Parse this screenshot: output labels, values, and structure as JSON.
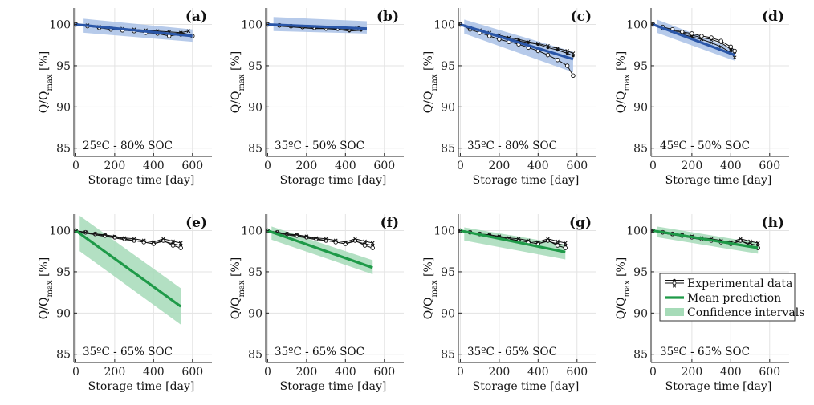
{
  "colors": {
    "blue_band": "#a9c1e6",
    "blue_line": "#2a56a8",
    "green_band": "#a6dbb8",
    "green_line": "#1e9a48",
    "data": "#111111"
  },
  "chart_data": [
    {
      "type": "line",
      "panel": "(a)",
      "condition": "25ºC - 80% SOC",
      "xlabel": "Storage time [day]",
      "ylabel": "Q/Q",
      "ylabel_sub": "max",
      "ylabel_unit": " [%]",
      "xlim": [
        -10,
        700
      ],
      "ylim": [
        84,
        102
      ],
      "xticks": [
        0,
        200,
        400,
        600
      ],
      "yticks": [
        85,
        90,
        95,
        100
      ],
      "grid": true,
      "theme": "blue",
      "series": [
        {
          "marker": "filled",
          "x": [
            0,
            60,
            120,
            180,
            240,
            300,
            360,
            420,
            480,
            540,
            600
          ],
          "y": [
            100,
            99.8,
            99.7,
            99.5,
            99.4,
            99.3,
            99.2,
            99.1,
            98.8,
            99.0,
            98.7
          ]
        },
        {
          "marker": "open",
          "x": [
            0,
            60,
            120,
            180,
            240,
            300,
            360,
            420,
            480,
            540,
            600
          ],
          "y": [
            100,
            99.8,
            99.6,
            99.4,
            99.3,
            99.2,
            99.0,
            98.9,
            98.6,
            98.8,
            98.6
          ]
        },
        {
          "marker": "cross",
          "x": [
            0,
            60,
            120,
            180,
            240,
            300,
            360,
            420,
            480,
            540,
            580
          ],
          "y": [
            100,
            99.9,
            99.7,
            99.6,
            99.5,
            99.4,
            99.3,
            99.2,
            99.1,
            99.0,
            99.2
          ]
        }
      ],
      "prediction": {
        "x": [
          0,
          600
        ],
        "y": [
          100,
          98.6
        ]
      },
      "interval": {
        "x": [
          40,
          600
        ],
        "lower": [
          99.0,
          97.9
        ],
        "upper": [
          100.7,
          99.4
        ]
      }
    },
    {
      "type": "line",
      "panel": "(b)",
      "condition": "35ºC - 50% SOC",
      "xlabel": "Storage time [day]",
      "ylabel": "Q/Q",
      "ylabel_sub": "max",
      "ylabel_unit": " [%]",
      "xlim": [
        -10,
        700
      ],
      "ylim": [
        84,
        102
      ],
      "xticks": [
        0,
        200,
        400,
        600
      ],
      "yticks": [
        85,
        90,
        95,
        100
      ],
      "grid": true,
      "theme": "blue",
      "series": [
        {
          "marker": "filled",
          "x": [
            0,
            60,
            120,
            180,
            240,
            300,
            360,
            420,
            480
          ],
          "y": [
            100,
            99.8,
            99.7,
            99.6,
            99.5,
            99.5,
            99.4,
            99.2,
            99.3
          ]
        },
        {
          "marker": "open",
          "x": [
            0,
            60,
            120,
            180,
            240,
            300,
            360,
            420,
            470
          ],
          "y": [
            100,
            99.9,
            99.8,
            99.7,
            99.6,
            99.5,
            99.5,
            99.4,
            99.5
          ]
        },
        {
          "marker": "cross",
          "x": [
            0,
            60,
            120,
            180,
            240,
            300,
            360,
            420,
            460
          ],
          "y": [
            100,
            99.9,
            99.8,
            99.7,
            99.7,
            99.6,
            99.6,
            99.5,
            99.6
          ]
        }
      ],
      "prediction": {
        "x": [
          0,
          510
        ],
        "y": [
          100,
          99.5
        ]
      },
      "interval": {
        "x": [
          30,
          510
        ],
        "lower": [
          99.2,
          98.9
        ],
        "upper": [
          100.9,
          100.4
        ]
      }
    },
    {
      "type": "line",
      "panel": "(c)",
      "condition": "35ºC - 80% SOC",
      "xlabel": "Storage time [day]",
      "ylabel": "Q/Q",
      "ylabel_sub": "max",
      "ylabel_unit": " [%]",
      "xlim": [
        -10,
        700
      ],
      "ylim": [
        84,
        102
      ],
      "xticks": [
        0,
        200,
        400,
        600
      ],
      "yticks": [
        85,
        90,
        95,
        100
      ],
      "grid": true,
      "theme": "blue",
      "series": [
        {
          "marker": "filled",
          "x": [
            0,
            50,
            100,
            150,
            200,
            250,
            300,
            350,
            400,
            450,
            500,
            550,
            580
          ],
          "y": [
            100,
            99.5,
            99.2,
            98.8,
            98.5,
            98.3,
            98.0,
            97.8,
            97.6,
            97.2,
            96.9,
            96.5,
            96.2
          ]
        },
        {
          "marker": "open",
          "x": [
            0,
            50,
            100,
            150,
            200,
            250,
            300,
            350,
            400,
            450,
            500,
            550,
            580
          ],
          "y": [
            100,
            99.4,
            99.0,
            98.6,
            98.2,
            97.9,
            97.6,
            97.2,
            96.8,
            96.3,
            95.7,
            95.0,
            93.8
          ]
        },
        {
          "marker": "cross",
          "x": [
            0,
            50,
            100,
            150,
            200,
            250,
            300,
            350,
            400,
            450,
            500,
            550,
            580
          ],
          "y": [
            100,
            99.6,
            99.3,
            99.0,
            98.7,
            98.4,
            98.2,
            97.9,
            97.7,
            97.4,
            97.1,
            96.8,
            96.5
          ]
        }
      ],
      "prediction": {
        "x": [
          0,
          580
        ],
        "y": [
          100,
          95.8
        ]
      },
      "interval": {
        "x": [
          20,
          580
        ],
        "lower": [
          98.9,
          94.2
        ],
        "upper": [
          100.6,
          96.7
        ]
      }
    },
    {
      "type": "line",
      "panel": "(d)",
      "condition": "45ºC - 50% SOC",
      "xlabel": "Storage time [day]",
      "ylabel": "Q/Q",
      "ylabel_sub": "max",
      "ylabel_unit": " [%]",
      "xlim": [
        -10,
        700
      ],
      "ylim": [
        84,
        102
      ],
      "xticks": [
        0,
        200,
        400,
        600
      ],
      "yticks": [
        85,
        90,
        95,
        100
      ],
      "grid": true,
      "theme": "blue",
      "series": [
        {
          "marker": "filled",
          "x": [
            0,
            50,
            100,
            150,
            200,
            250,
            300,
            350,
            400,
            420
          ],
          "y": [
            100,
            99.6,
            99.3,
            99.0,
            98.7,
            98.4,
            98.2,
            97.8,
            97.0,
            96.6
          ]
        },
        {
          "marker": "open",
          "x": [
            0,
            50,
            100,
            150,
            200,
            250,
            300,
            350,
            400,
            420
          ],
          "y": [
            100,
            99.7,
            99.4,
            99.1,
            98.9,
            98.6,
            98.4,
            98.0,
            97.3,
            96.8
          ]
        },
        {
          "marker": "cross",
          "x": [
            0,
            50,
            100,
            150,
            200,
            250,
            300,
            350,
            400,
            420
          ],
          "y": [
            100,
            99.5,
            99.2,
            98.8,
            98.5,
            98.2,
            97.8,
            97.3,
            96.6,
            96.0
          ]
        }
      ],
      "prediction": {
        "x": [
          0,
          420
        ],
        "y": [
          100,
          96.3
        ]
      },
      "interval": {
        "x": [
          20,
          420
        ],
        "lower": [
          99.0,
          95.6
        ],
        "upper": [
          100.6,
          97.0
        ]
      }
    },
    {
      "type": "line",
      "panel": "(e)",
      "condition": "35ºC - 65% SOC",
      "xlabel": "Storage time [day]",
      "ylabel": "Q/Q",
      "ylabel_sub": "max",
      "ylabel_unit": " [%]",
      "xlim": [
        -10,
        700
      ],
      "ylim": [
        84,
        102
      ],
      "xticks": [
        0,
        200,
        400,
        600
      ],
      "yticks": [
        85,
        90,
        95,
        100
      ],
      "grid": true,
      "theme": "green",
      "series": [
        {
          "marker": "filled",
          "x": [
            0,
            50,
            100,
            150,
            200,
            250,
            300,
            350,
            400,
            450,
            500,
            540
          ],
          "y": [
            100,
            99.7,
            99.5,
            99.3,
            99.1,
            98.9,
            98.8,
            98.6,
            98.4,
            98.7,
            98.4,
            98.2
          ]
        },
        {
          "marker": "open",
          "x": [
            0,
            50,
            100,
            150,
            200,
            250,
            300,
            350,
            400,
            450,
            500,
            540
          ],
          "y": [
            100,
            99.8,
            99.6,
            99.4,
            99.2,
            99.0,
            98.8,
            98.6,
            98.4,
            98.8,
            98.2,
            97.9
          ]
        },
        {
          "marker": "cross",
          "x": [
            0,
            50,
            100,
            150,
            200,
            250,
            300,
            350,
            400,
            450,
            500,
            540
          ],
          "y": [
            100,
            99.8,
            99.6,
            99.5,
            99.3,
            99.1,
            99.0,
            98.8,
            98.6,
            99.0,
            98.7,
            98.5
          ]
        }
      ],
      "prediction": {
        "x": [
          0,
          540
        ],
        "y": [
          100,
          90.8
        ]
      },
      "interval": {
        "x": [
          20,
          540
        ],
        "lower": [
          97.5,
          88.6
        ],
        "upper": [
          101.8,
          93.0
        ]
      }
    },
    {
      "type": "line",
      "panel": "(f)",
      "condition": "35ºC - 65% SOC",
      "xlabel": "Storage time [day]",
      "ylabel": "Q/Q",
      "ylabel_sub": "max",
      "ylabel_unit": " [%]",
      "xlim": [
        -10,
        700
      ],
      "ylim": [
        84,
        102
      ],
      "xticks": [
        0,
        200,
        400,
        600
      ],
      "yticks": [
        85,
        90,
        95,
        100
      ],
      "grid": true,
      "theme": "green",
      "series": [
        {
          "marker": "filled",
          "x": [
            0,
            50,
            100,
            150,
            200,
            250,
            300,
            350,
            400,
            450,
            500,
            540
          ],
          "y": [
            100,
            99.7,
            99.5,
            99.3,
            99.1,
            98.9,
            98.8,
            98.6,
            98.4,
            98.7,
            98.4,
            98.2
          ]
        },
        {
          "marker": "open",
          "x": [
            0,
            50,
            100,
            150,
            200,
            250,
            300,
            350,
            400,
            450,
            500,
            540
          ],
          "y": [
            100,
            99.8,
            99.6,
            99.4,
            99.2,
            99.0,
            98.8,
            98.6,
            98.4,
            98.8,
            98.2,
            97.9
          ]
        },
        {
          "marker": "cross",
          "x": [
            0,
            50,
            100,
            150,
            200,
            250,
            300,
            350,
            400,
            450,
            500,
            540
          ],
          "y": [
            100,
            99.8,
            99.6,
            99.5,
            99.3,
            99.1,
            99.0,
            98.8,
            98.6,
            99.0,
            98.7,
            98.5
          ]
        }
      ],
      "prediction": {
        "x": [
          0,
          540
        ],
        "y": [
          100,
          95.5
        ]
      },
      "interval": {
        "x": [
          20,
          540
        ],
        "lower": [
          98.9,
          94.7
        ],
        "upper": [
          100.5,
          96.4
        ]
      }
    },
    {
      "type": "line",
      "panel": "(g)",
      "condition": "35ºC - 65% SOC",
      "xlabel": "Storage time [day]",
      "ylabel": "Q/Q",
      "ylabel_sub": "max",
      "ylabel_unit": " [%]",
      "xlim": [
        -10,
        700
      ],
      "ylim": [
        84,
        102
      ],
      "xticks": [
        0,
        200,
        400,
        600
      ],
      "yticks": [
        85,
        90,
        95,
        100
      ],
      "grid": true,
      "theme": "green",
      "series": [
        {
          "marker": "filled",
          "x": [
            0,
            50,
            100,
            150,
            200,
            250,
            300,
            350,
            400,
            450,
            500,
            540
          ],
          "y": [
            100,
            99.7,
            99.5,
            99.3,
            99.1,
            98.9,
            98.8,
            98.6,
            98.4,
            98.7,
            98.4,
            98.2
          ]
        },
        {
          "marker": "open",
          "x": [
            0,
            50,
            100,
            150,
            200,
            250,
            300,
            350,
            400,
            450,
            500,
            540
          ],
          "y": [
            100,
            99.8,
            99.6,
            99.4,
            99.2,
            99.0,
            98.8,
            98.6,
            98.4,
            98.8,
            98.2,
            97.9
          ]
        },
        {
          "marker": "cross",
          "x": [
            0,
            50,
            100,
            150,
            200,
            250,
            300,
            350,
            400,
            450,
            500,
            540
          ],
          "y": [
            100,
            99.8,
            99.6,
            99.5,
            99.3,
            99.1,
            99.0,
            98.8,
            98.6,
            99.0,
            98.7,
            98.5
          ]
        }
      ],
      "prediction": {
        "x": [
          0,
          540
        ],
        "y": [
          100,
          97.4
        ]
      },
      "interval": {
        "x": [
          20,
          540
        ],
        "lower": [
          98.8,
          96.5
        ],
        "upper": [
          100.4,
          98.3
        ]
      }
    },
    {
      "type": "line",
      "panel": "(h)",
      "condition": "35ºC - 65% SOC",
      "xlabel": "Storage time [day]",
      "ylabel": "Q/Q",
      "ylabel_sub": "max",
      "ylabel_unit": " [%]",
      "xlim": [
        -10,
        700
      ],
      "ylim": [
        84,
        102
      ],
      "xticks": [
        0,
        200,
        400,
        600
      ],
      "yticks": [
        85,
        90,
        95,
        100
      ],
      "grid": true,
      "theme": "green",
      "series": [
        {
          "marker": "filled",
          "x": [
            0,
            50,
            100,
            150,
            200,
            250,
            300,
            350,
            400,
            450,
            500,
            540
          ],
          "y": [
            100,
            99.7,
            99.5,
            99.3,
            99.1,
            98.9,
            98.8,
            98.6,
            98.4,
            98.7,
            98.4,
            98.2
          ]
        },
        {
          "marker": "open",
          "x": [
            0,
            50,
            100,
            150,
            200,
            250,
            300,
            350,
            400,
            450,
            500,
            540
          ],
          "y": [
            100,
            99.8,
            99.6,
            99.4,
            99.2,
            99.0,
            98.8,
            98.6,
            98.4,
            98.8,
            98.2,
            97.9
          ]
        },
        {
          "marker": "cross",
          "x": [
            0,
            50,
            100,
            150,
            200,
            250,
            300,
            350,
            400,
            450,
            500,
            540
          ],
          "y": [
            100,
            99.8,
            99.6,
            99.5,
            99.3,
            99.1,
            99.0,
            98.8,
            98.6,
            99.0,
            98.7,
            98.5
          ]
        }
      ],
      "prediction": {
        "x": [
          0,
          540
        ],
        "y": [
          100,
          97.9
        ]
      },
      "interval": {
        "x": [
          20,
          540
        ],
        "lower": [
          99.2,
          97.2
        ],
        "upper": [
          100.5,
          98.5
        ]
      },
      "legend": {
        "placement": "right",
        "entries": [
          "Experimental data",
          "Mean prediction",
          "Confidence intervals"
        ]
      }
    }
  ]
}
